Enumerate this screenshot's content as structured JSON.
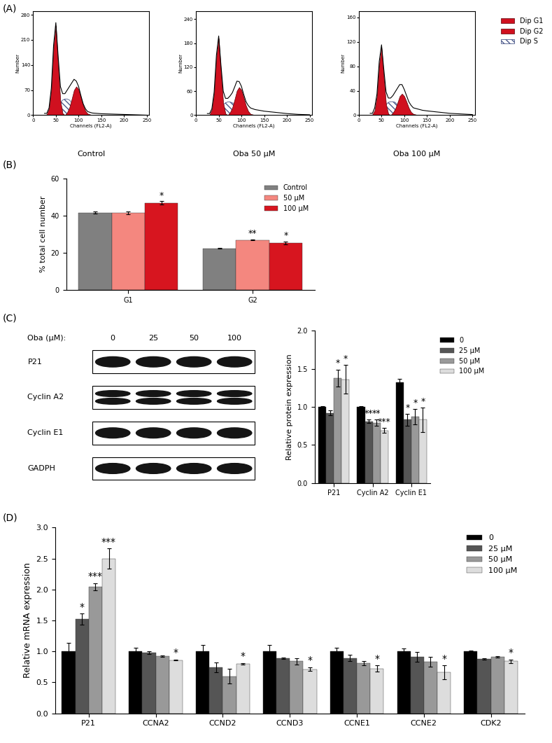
{
  "panel_labels": [
    "(A)",
    "(B)",
    "(C)",
    "(D)"
  ],
  "chart_data": [
    {
      "type": "area",
      "title": "Control",
      "x_label": "Channels (FL2-A)",
      "y_label": "Number",
      "x": [
        25,
        30,
        35,
        40,
        45,
        50,
        55,
        60,
        65,
        70,
        75,
        80,
        85,
        90,
        95,
        100,
        105,
        110,
        115,
        120,
        130,
        140,
        150,
        175,
        200,
        225,
        250
      ],
      "xlim": [
        0,
        255
      ],
      "xticks": [
        0,
        50,
        100,
        150,
        200,
        250
      ],
      "ylim": [
        0,
        290
      ],
      "yticks": [
        0,
        70,
        140,
        210,
        280
      ],
      "series": [
        {
          "name": "Dip G1",
          "color": "#d0101f",
          "values": [
            0,
            2,
            18,
            72,
            190,
            250,
            140,
            40,
            5,
            0,
            0,
            0,
            0,
            0,
            0,
            0,
            0,
            0,
            0,
            0,
            0,
            0,
            0,
            0,
            0,
            0,
            0
          ]
        },
        {
          "name": "Dip G2",
          "color": "#d0101f",
          "values": [
            0,
            0,
            0,
            0,
            0,
            0,
            0,
            0,
            0,
            0,
            8,
            22,
            45,
            70,
            80,
            72,
            50,
            28,
            12,
            4,
            0,
            0,
            0,
            0,
            0,
            0,
            0
          ]
        },
        {
          "name": "Dip S",
          "color": "#4d5b8c",
          "line_style": "hatch",
          "values": [
            0,
            0,
            0,
            0,
            0,
            5,
            20,
            35,
            42,
            45,
            45,
            42,
            35,
            25,
            12,
            3,
            0,
            0,
            0,
            0,
            0,
            0,
            0,
            0,
            0,
            0,
            0
          ]
        },
        {
          "type": "line",
          "color": "#000000",
          "values": [
            5,
            5,
            20,
            75,
            195,
            258,
            165,
            80,
            60,
            60,
            70,
            80,
            90,
            100,
            95,
            80,
            55,
            32,
            18,
            10,
            6,
            5,
            4,
            3,
            2,
            1,
            0
          ]
        }
      ]
    },
    {
      "type": "area",
      "title": "Oba 50 μM",
      "x_label": "Channels (FL2-A)",
      "y_label": "Number",
      "x": [
        25,
        30,
        35,
        40,
        45,
        50,
        55,
        60,
        65,
        70,
        75,
        80,
        85,
        90,
        95,
        100,
        105,
        110,
        115,
        120,
        130,
        140,
        150,
        175,
        200,
        225,
        250
      ],
      "xlim": [
        0,
        255
      ],
      "xticks": [
        0,
        50,
        100,
        150,
        200,
        250
      ],
      "ylim": [
        0,
        260
      ],
      "yticks": [
        0,
        60,
        120,
        180,
        240
      ],
      "series": [
        {
          "name": "Dip G1",
          "color": "#d0101f",
          "values": [
            0,
            1,
            14,
            55,
            146,
            192,
            108,
            31,
            4,
            0,
            0,
            0,
            0,
            0,
            0,
            0,
            0,
            0,
            0,
            0,
            0,
            0,
            0,
            0,
            0,
            0,
            0
          ]
        },
        {
          "name": "Dip G2",
          "color": "#d0101f",
          "values": [
            0,
            0,
            0,
            0,
            0,
            0,
            0,
            0,
            0,
            0,
            7,
            19,
            39,
            61,
            70,
            63,
            44,
            24,
            10,
            3,
            0,
            0,
            0,
            0,
            0,
            0,
            0
          ]
        },
        {
          "name": "Dip S",
          "color": "#4d5b8c",
          "line_style": "hatch",
          "values": [
            0,
            0,
            0,
            0,
            0,
            4,
            15,
            26,
            31,
            33,
            33,
            31,
            26,
            18,
            9,
            2,
            0,
            0,
            0,
            0,
            0,
            0,
            0,
            0,
            0,
            0,
            0
          ]
        },
        {
          "type": "line",
          "color": "#000000",
          "values": [
            4,
            4,
            16,
            58,
            150,
            198,
            125,
            60,
            42,
            42,
            48,
            56,
            70,
            85,
            84,
            72,
            52,
            34,
            24,
            18,
            14,
            12,
            10,
            7,
            4,
            2,
            1
          ]
        }
      ]
    },
    {
      "type": "area",
      "title": "Oba 100 μM",
      "x_label": "Channels (FL2-A)",
      "y_label": "Number",
      "x": [
        25,
        30,
        35,
        40,
        45,
        50,
        55,
        60,
        65,
        70,
        75,
        80,
        85,
        90,
        95,
        100,
        105,
        110,
        115,
        120,
        130,
        140,
        150,
        175,
        200,
        225,
        250
      ],
      "xlim": [
        0,
        255
      ],
      "xticks": [
        0,
        50,
        100,
        150,
        200,
        250
      ],
      "ylim": [
        0,
        170
      ],
      "yticks": [
        0,
        40,
        80,
        120,
        160
      ],
      "legend": "upper right",
      "series": [
        {
          "name": "Dip G1",
          "color": "#d0101f",
          "values": [
            0,
            1,
            8,
            32,
            84,
            110,
            62,
            18,
            2,
            0,
            0,
            0,
            0,
            0,
            0,
            0,
            0,
            0,
            0,
            0,
            0,
            0,
            0,
            0,
            0,
            0,
            0
          ]
        },
        {
          "name": "Dip G2",
          "color": "#d0101f",
          "values": [
            0,
            0,
            0,
            0,
            0,
            0,
            0,
            0,
            0,
            0,
            4,
            10,
            20,
            31,
            35,
            31,
            22,
            12,
            5,
            2,
            0,
            0,
            0,
            0,
            0,
            0,
            0
          ]
        },
        {
          "name": "Dip S",
          "color": "#4d5b8c",
          "line_style": "hatch",
          "values": [
            0,
            0,
            0,
            0,
            0,
            3,
            10,
            17,
            21,
            22,
            22,
            21,
            17,
            12,
            6,
            1,
            0,
            0,
            0,
            0,
            0,
            0,
            0,
            0,
            0,
            0,
            0
          ]
        },
        {
          "type": "line",
          "color": "#000000",
          "values": [
            3,
            3,
            12,
            35,
            88,
            115,
            75,
            38,
            28,
            28,
            32,
            38,
            44,
            50,
            50,
            42,
            32,
            22,
            16,
            12,
            10,
            8,
            7,
            5,
            3,
            2,
            1
          ]
        }
      ]
    },
    {
      "type": "bar",
      "y_label": "% total cell number",
      "categories": [
        "G1",
        "G2"
      ],
      "ylim": [
        0,
        60
      ],
      "yticks": [
        0,
        20,
        40,
        60
      ],
      "legend": "upper right",
      "series": [
        {
          "name": "Control",
          "color": "#808080",
          "values": [
            41.5,
            22.3
          ],
          "errors": [
            0.6,
            0.2
          ],
          "significance": [
            null,
            null
          ]
        },
        {
          "name": "50 μM",
          "color": "#f4877f",
          "values": [
            41.3,
            26.8
          ],
          "errors": [
            0.8,
            0.3
          ],
          "significance": [
            null,
            "**"
          ]
        },
        {
          "name": "100 μM",
          "color": "#d7151f",
          "values": [
            46.8,
            25.3
          ],
          "errors": [
            0.9,
            0.7
          ],
          "significance": [
            "*",
            "*"
          ]
        }
      ]
    },
    {
      "type": "bar",
      "y_label": "Relative protein expression",
      "categories": [
        "P21",
        "Cyclin A2",
        "Cyclin E1"
      ],
      "ylim": [
        0,
        2.0
      ],
      "yticks": [
        {
          "value": 0,
          "label": "0.0"
        },
        {
          "value": 0.5,
          "label": "0.5"
        },
        {
          "value": 1.0,
          "label": "1.0"
        },
        {
          "value": 1.5,
          "label": "1.5"
        },
        {
          "value": 2.0,
          "label": "2.0"
        }
      ],
      "legend": "right",
      "series": [
        {
          "name": "0",
          "color": "#000000",
          "values": [
            1.0,
            1.0,
            1.32
          ],
          "errors": [
            0.01,
            0.005,
            0.05
          ],
          "significance": [
            null,
            null,
            null
          ]
        },
        {
          "name": "25 μM",
          "color": "#555555",
          "values": [
            0.92,
            0.81,
            0.83
          ],
          "errors": [
            0.03,
            0.02,
            0.08
          ],
          "significance": [
            null,
            "**",
            "*"
          ]
        },
        {
          "name": "50 μM",
          "color": "#999999",
          "values": [
            1.38,
            0.79,
            0.87
          ],
          "errors": [
            0.11,
            0.04,
            0.1
          ],
          "significance": [
            "*",
            "**",
            "*"
          ]
        },
        {
          "name": "100 μM",
          "color": "#dddddd",
          "values": [
            1.36,
            0.69,
            0.83
          ],
          "errors": [
            0.19,
            0.03,
            0.16
          ],
          "significance": [
            "*",
            "***",
            "*"
          ]
        }
      ]
    },
    {
      "type": "bar",
      "y_label": "Relative mRNA expression",
      "categories": [
        "P21",
        "CCNA2",
        "CCND2",
        "CCND3",
        "CCNE1",
        "CCNE2",
        "CDK2"
      ],
      "ylim": [
        0,
        3.0
      ],
      "yticks": [
        {
          "value": 0,
          "label": "0.0"
        },
        {
          "value": 0.5,
          "label": "0.5"
        },
        {
          "value": 1.0,
          "label": "1.0"
        },
        {
          "value": 1.5,
          "label": "1.5"
        },
        {
          "value": 2.0,
          "label": "2.0"
        },
        {
          "value": 2.5,
          "label": "2.5"
        },
        {
          "value": 3.0,
          "label": "3.0"
        }
      ],
      "legend": "upper right",
      "series": [
        {
          "name": "0",
          "color": "#000000",
          "values": [
            1.0,
            1.0,
            1.0,
            1.0,
            1.0,
            1.0,
            1.0
          ],
          "errors": [
            0.14,
            0.06,
            0.1,
            0.1,
            0.06,
            0.05,
            0.01
          ],
          "significance": [
            null,
            null,
            null,
            null,
            null,
            null,
            null
          ]
        },
        {
          "name": "25 μM",
          "color": "#555555",
          "values": [
            1.52,
            0.98,
            0.74,
            0.89,
            0.89,
            0.91,
            0.88
          ],
          "errors": [
            0.09,
            0.02,
            0.08,
            0.01,
            0.05,
            0.08,
            0.01
          ],
          "significance": [
            "*",
            null,
            null,
            null,
            null,
            null,
            null
          ]
        },
        {
          "name": "50 μM",
          "color": "#999999",
          "values": [
            2.04,
            0.92,
            0.6,
            0.84,
            0.81,
            0.83,
            0.91
          ],
          "errors": [
            0.06,
            0.01,
            0.12,
            0.05,
            0.03,
            0.08,
            0.01
          ],
          "significance": [
            "***",
            null,
            null,
            null,
            null,
            null,
            null
          ]
        },
        {
          "name": "100 μM",
          "color": "#dddddd",
          "values": [
            2.5,
            0.86,
            0.8,
            0.71,
            0.72,
            0.66,
            0.84
          ],
          "errors": [
            0.16,
            0.01,
            0.01,
            0.03,
            0.05,
            0.11,
            0.03
          ],
          "significance": [
            "***",
            "*",
            "*",
            "*",
            "*",
            "*",
            "*"
          ]
        }
      ]
    }
  ],
  "blot": {
    "lane_header": "Oba (μM):",
    "lanes": [
      "0",
      "25",
      "50",
      "100"
    ],
    "rows": [
      {
        "label": "P21",
        "bands": 1
      },
      {
        "label": "Cyclin A2",
        "bands": 2
      },
      {
        "label": "Cyclin E1",
        "bands": 1
      },
      {
        "label": "GADPH",
        "bands": 1
      }
    ]
  }
}
